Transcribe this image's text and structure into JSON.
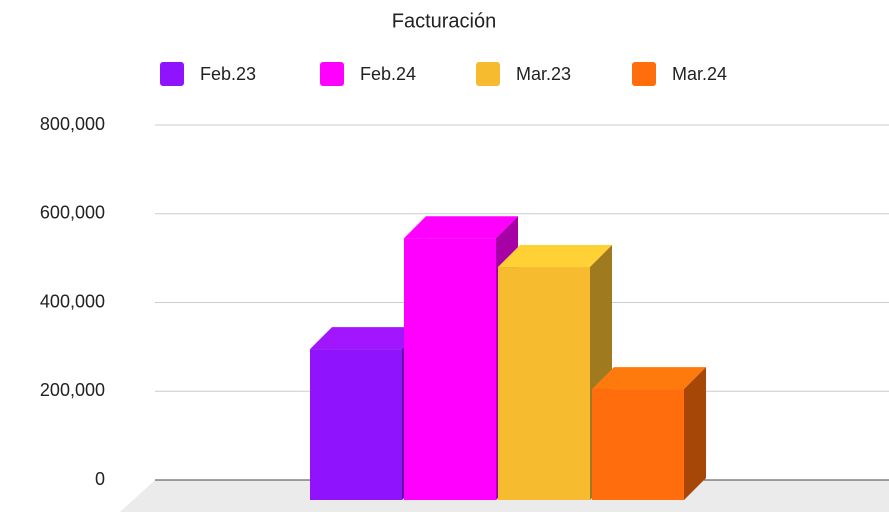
{
  "chart_data": {
    "type": "bar3d",
    "title": "Facturación",
    "categories": [
      null
    ],
    "series": [
      {
        "name": "Feb.23",
        "color": "#9013fe",
        "values": [
          340000
        ]
      },
      {
        "name": "Feb.24",
        "color": "#ff00ff",
        "values": [
          590000
        ]
      },
      {
        "name": "Mar.23",
        "color": "#f6bb2f",
        "values": [
          525000
        ]
      },
      {
        "name": "Mar.24",
        "color": "#ff6d0c",
        "values": [
          250000
        ]
      }
    ],
    "ylim": [
      0,
      800000
    ],
    "yticks": [
      0,
      {
        "value": 200000,
        "label": "200,000"
      },
      {
        "value": 400000,
        "label": "400,000"
      },
      {
        "value": 600000,
        "label": "600,000"
      },
      {
        "value": 800000,
        "label": "800,000"
      }
    ],
    "grid": true,
    "legend": "top"
  }
}
